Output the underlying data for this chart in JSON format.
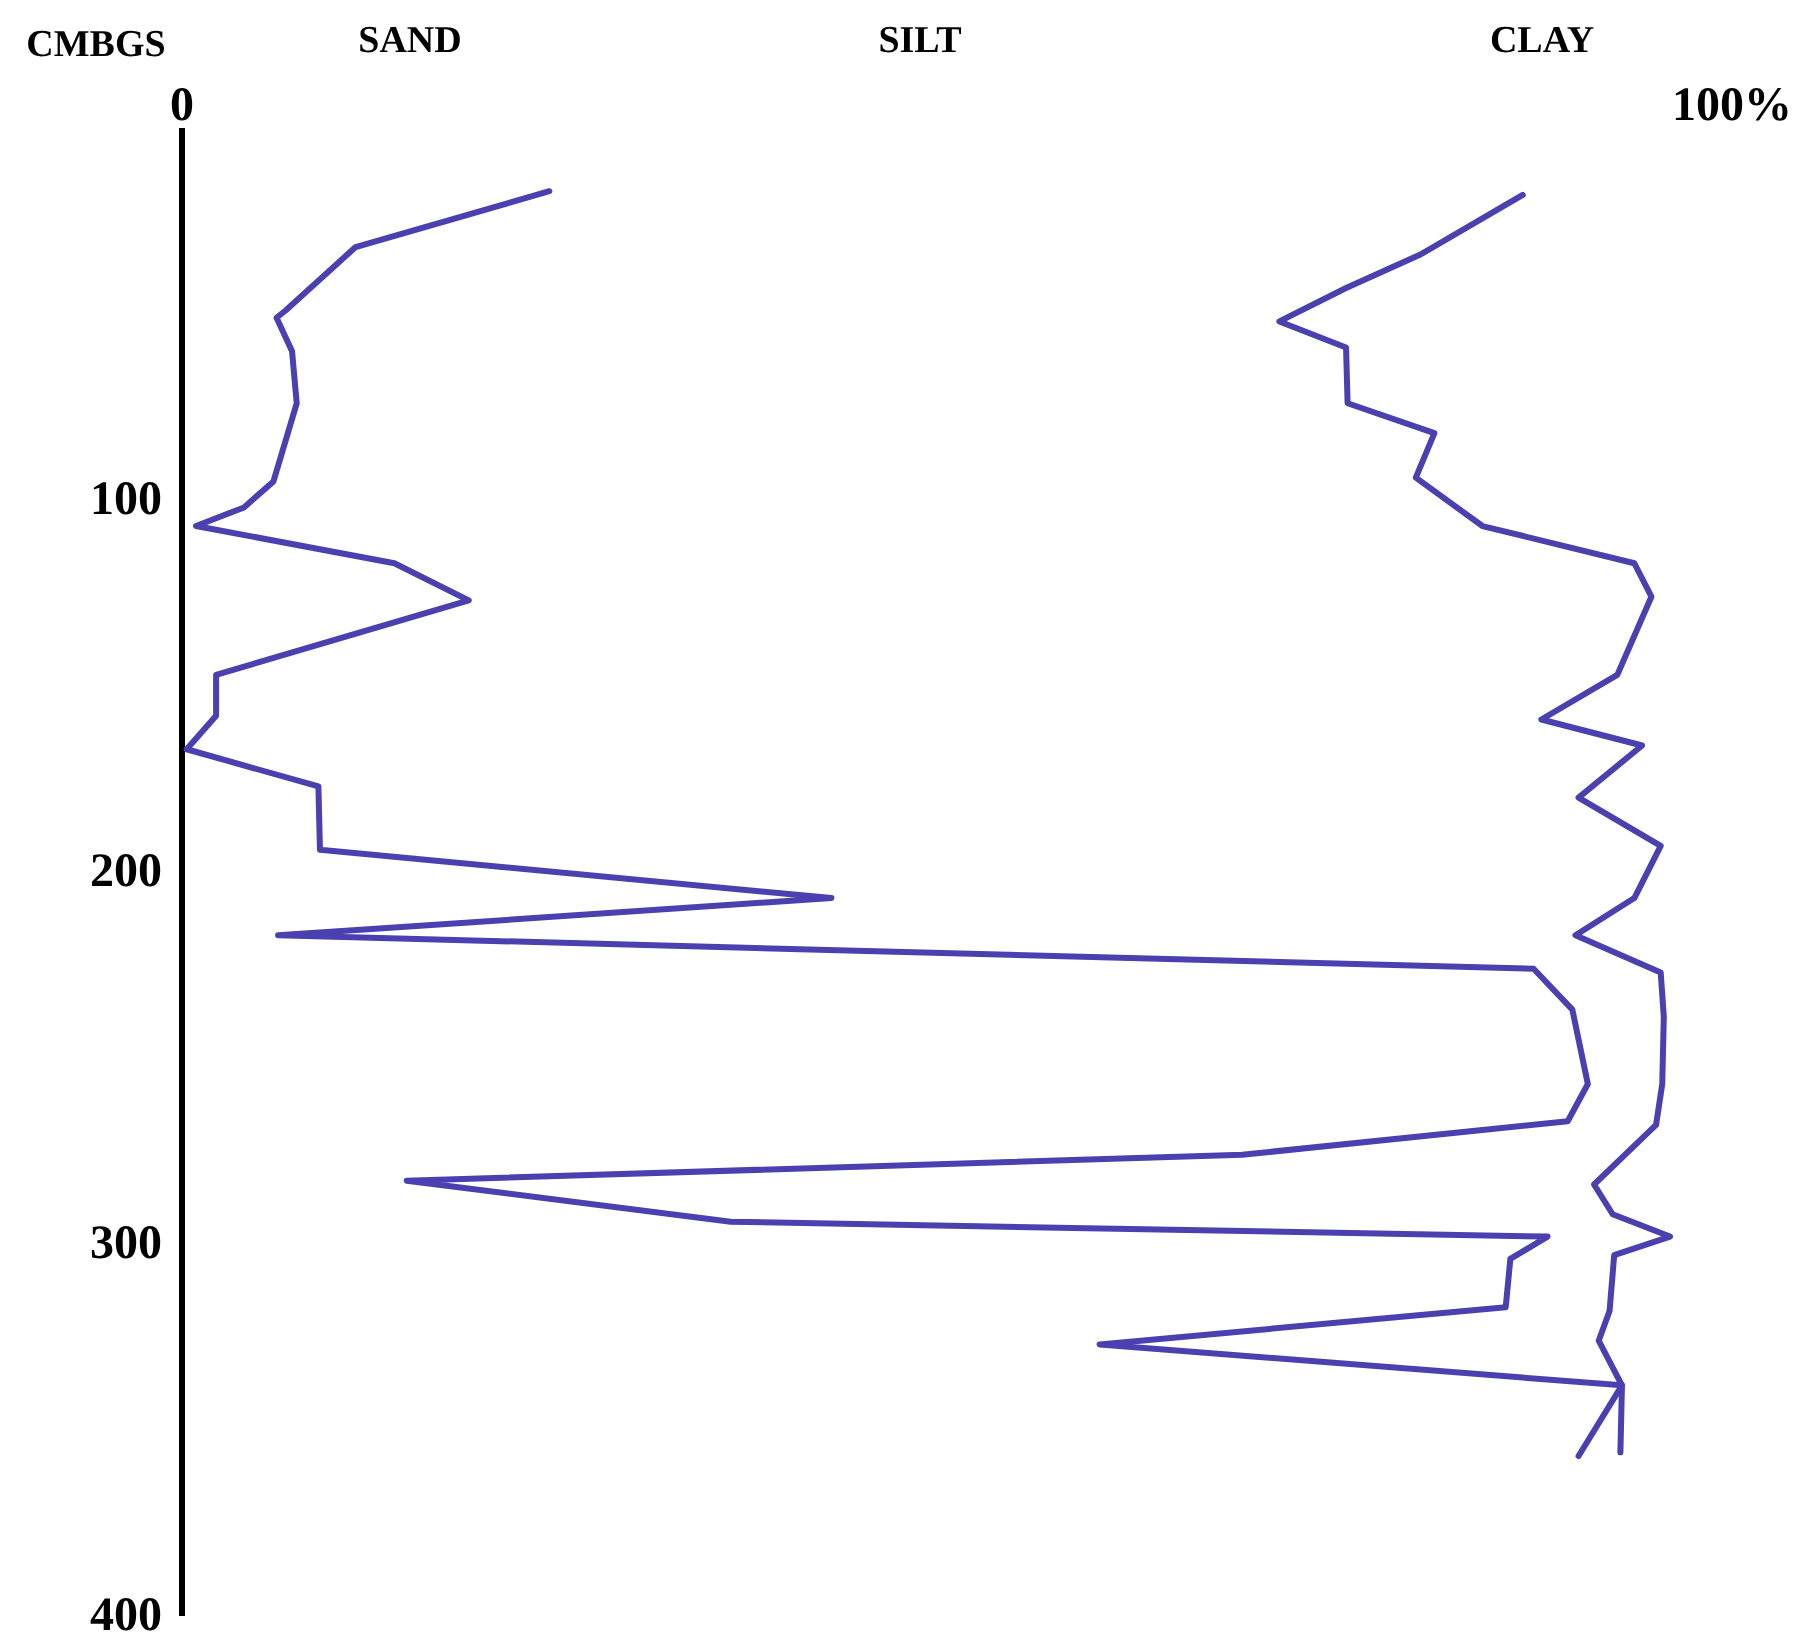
{
  "chart_data": {
    "type": "line",
    "ylabel": "CMBGS",
    "annotations": [
      "SAND",
      "SILT",
      "CLAY"
    ],
    "xlim": [
      0,
      100
    ],
    "xticks": [
      {
        "value": 0,
        "label": "0"
      },
      {
        "value": 100,
        "label": "100%"
      }
    ],
    "ylim": [
      400,
      0
    ],
    "yticks": [
      100,
      200,
      300,
      400
    ],
    "grid": false,
    "marker": "none",
    "line_style": "solid",
    "series": [
      {
        "color": "#4a40b0",
        "x": [
          23.7,
          11.2,
          6.7,
          6.1,
          7.1,
          7.4,
          5.9,
          4.0,
          0.9,
          13.7,
          18.5,
          2.2,
          2.2,
          0.3,
          8.8,
          8.9,
          41.9,
          6.2,
          87.2,
          89.7,
          90.7,
          89.4,
          68.4,
          14.5,
          35.4,
          88.1,
          85.7,
          85.4,
          59.2,
          92.9,
          90.1
        ],
        "values": [
          17,
          32,
          49,
          51,
          60,
          74,
          95,
          102,
          107,
          117,
          127,
          147,
          158,
          167,
          177,
          194,
          207,
          217,
          226,
          237,
          257,
          267,
          276,
          283,
          294,
          298,
          304,
          317,
          327,
          338,
          357
        ]
      },
      {
        "color": "#4a40b0",
        "x": [
          86.5,
          79.9,
          75.1,
          70.8,
          75.1,
          75.2,
          80.8,
          79.6,
          83.9,
          93.7,
          94.8,
          92.6,
          87.7,
          94.2,
          90.1,
          95.4,
          93.7,
          89.9,
          95.4,
          95.6,
          95.5,
          95.1,
          91.1,
          92.3,
          96,
          92.4,
          92.1,
          91.4,
          92.9,
          92.8
        ],
        "values": [
          18,
          34,
          43,
          52,
          59,
          74,
          82,
          94,
          107,
          117,
          126,
          147,
          159,
          166,
          180,
          193,
          207,
          217,
          227,
          239,
          257,
          268,
          284,
          292,
          298,
          303,
          318,
          326,
          338,
          356
        ]
      }
    ]
  }
}
